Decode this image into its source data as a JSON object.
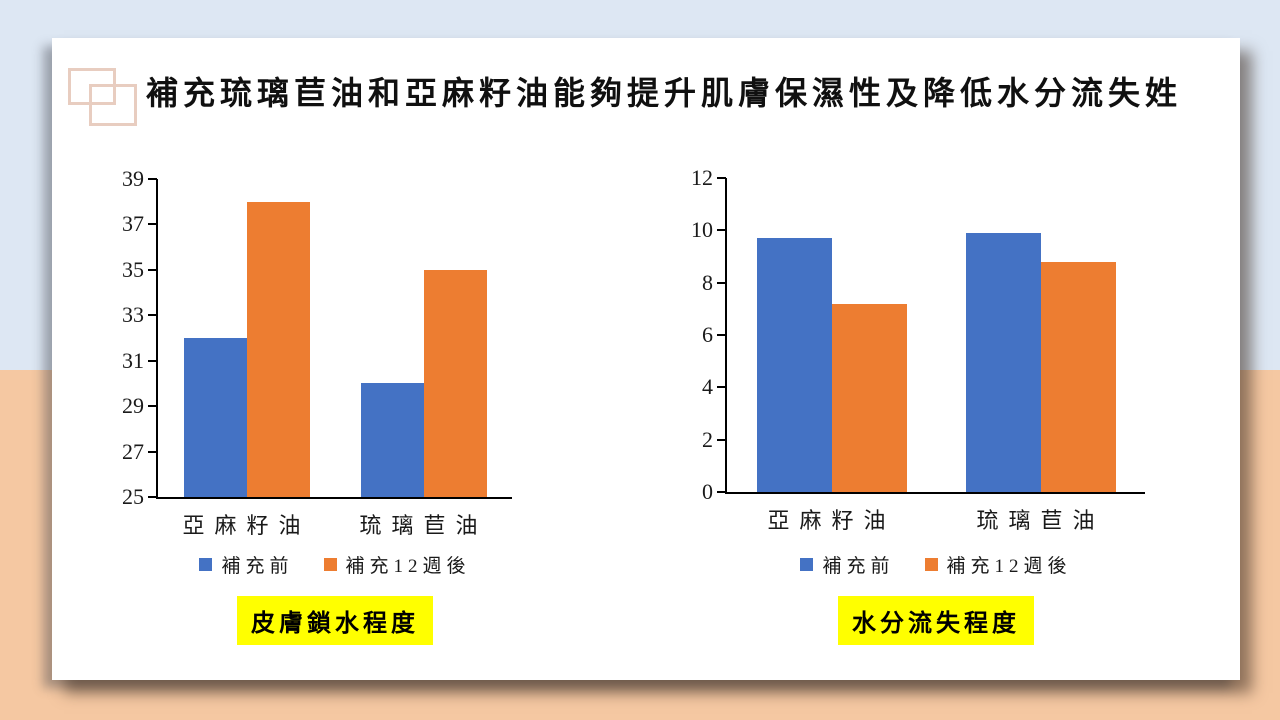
{
  "title": "補充琉璃苣油和亞麻籽油能夠提升肌膚保濕性及降低水分流失姓",
  "colors": {
    "bg_top": "#dde7f3",
    "bg_bottom": "#f5c8a2",
    "deco_outline": "#e8cdc0",
    "highlight_yellow": "#ffff00",
    "bar_blue": "#4472C4",
    "bar_orange": "#ED7D31",
    "axis": "#000000"
  },
  "chart_data": [
    {
      "type": "bar",
      "caption": "皮膚鎖水程度",
      "categories": [
        "亞麻籽油",
        "琉璃苣油"
      ],
      "series": [
        {
          "name": "補充前",
          "color": "#4472C4",
          "values": [
            32,
            30
          ]
        },
        {
          "name": "補充12週後",
          "color": "#ED7D31",
          "values": [
            38,
            35
          ]
        }
      ],
      "ylim": [
        25,
        39
      ],
      "yticks": [
        25,
        27,
        29,
        31,
        33,
        35,
        37,
        39
      ],
      "grid": false,
      "legend_position": "bottom"
    },
    {
      "type": "bar",
      "caption": "水分流失程度",
      "categories": [
        "亞麻籽油",
        "琉璃苣油"
      ],
      "series": [
        {
          "name": "補充前",
          "color": "#4472C4",
          "values": [
            9.7,
            9.9
          ]
        },
        {
          "name": "補充12週後",
          "color": "#ED7D31",
          "values": [
            7.2,
            8.8
          ]
        }
      ],
      "ylim": [
        0,
        12
      ],
      "yticks": [
        0,
        2,
        4,
        6,
        8,
        10,
        12
      ],
      "grid": false,
      "legend_position": "bottom"
    }
  ]
}
